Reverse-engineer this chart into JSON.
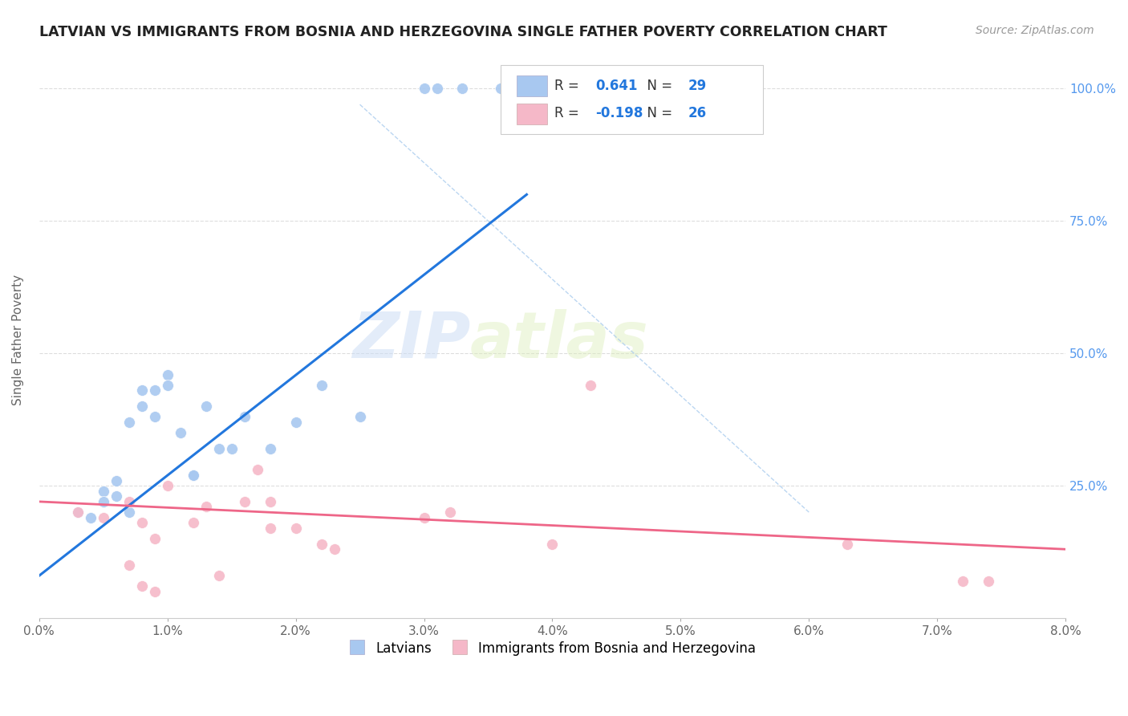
{
  "title": "LATVIAN VS IMMIGRANTS FROM BOSNIA AND HERZEGOVINA SINGLE FATHER POVERTY CORRELATION CHART",
  "source": "Source: ZipAtlas.com",
  "ylabel": "Single Father Poverty",
  "legend_blue_R": "0.641",
  "legend_blue_N": "29",
  "legend_pink_R": "-0.198",
  "legend_pink_N": "26",
  "legend_label_blue": "Latvians",
  "legend_label_pink": "Immigrants from Bosnia and Herzegovina",
  "watermark_zip": "ZIP",
  "watermark_atlas": "atlas",
  "blue_color": "#a8c8f0",
  "pink_color": "#f5b8c8",
  "blue_line_color": "#2277dd",
  "pink_line_color": "#ee6688",
  "diag_line_color": "#aaccee",
  "xlim": [
    0.0,
    0.08
  ],
  "ylim": [
    0.0,
    1.05
  ],
  "blue_points_x": [
    0.003,
    0.004,
    0.005,
    0.006,
    0.006,
    0.007,
    0.007,
    0.008,
    0.008,
    0.009,
    0.009,
    0.01,
    0.01,
    0.011,
    0.012,
    0.012,
    0.013,
    0.014,
    0.015,
    0.016,
    0.018,
    0.02,
    0.022,
    0.025,
    0.03,
    0.031,
    0.033,
    0.036,
    0.005
  ],
  "blue_points_y": [
    0.2,
    0.19,
    0.24,
    0.26,
    0.23,
    0.2,
    0.37,
    0.4,
    0.43,
    0.38,
    0.43,
    0.46,
    0.44,
    0.35,
    0.27,
    0.27,
    0.4,
    0.32,
    0.32,
    0.38,
    0.32,
    0.37,
    0.44,
    0.38,
    1.0,
    1.0,
    1.0,
    1.0,
    0.22
  ],
  "pink_points_x": [
    0.003,
    0.005,
    0.007,
    0.007,
    0.008,
    0.008,
    0.009,
    0.009,
    0.01,
    0.012,
    0.013,
    0.014,
    0.016,
    0.017,
    0.018,
    0.018,
    0.02,
    0.022,
    0.023,
    0.03,
    0.032,
    0.04,
    0.043,
    0.063,
    0.072,
    0.074
  ],
  "pink_points_y": [
    0.2,
    0.19,
    0.22,
    0.1,
    0.18,
    0.06,
    0.05,
    0.15,
    0.25,
    0.18,
    0.21,
    0.08,
    0.22,
    0.28,
    0.22,
    0.17,
    0.17,
    0.14,
    0.13,
    0.19,
    0.2,
    0.14,
    0.44,
    0.14,
    0.07,
    0.07
  ],
  "blue_trendline_x": [
    0.0,
    0.038
  ],
  "blue_trendline_y": [
    0.08,
    0.8
  ],
  "pink_trendline_x": [
    0.0,
    0.08
  ],
  "pink_trendline_y": [
    0.22,
    0.13
  ],
  "diag_line_x": [
    0.025,
    0.06
  ],
  "diag_line_y": [
    0.97,
    0.2
  ],
  "right_ytick_vals": [
    0.25,
    0.5,
    0.75,
    1.0
  ],
  "right_ytick_labels": [
    "25.0%",
    "50.0%",
    "75.0%",
    "100.0%"
  ],
  "xtick_vals": [
    0.0,
    0.01,
    0.02,
    0.03,
    0.04,
    0.05,
    0.06,
    0.07,
    0.08
  ],
  "xtick_labels": [
    "0.0%",
    "1.0%",
    "2.0%",
    "3.0%",
    "4.0%",
    "5.0%",
    "6.0%",
    "7.0%",
    "8.0%"
  ]
}
